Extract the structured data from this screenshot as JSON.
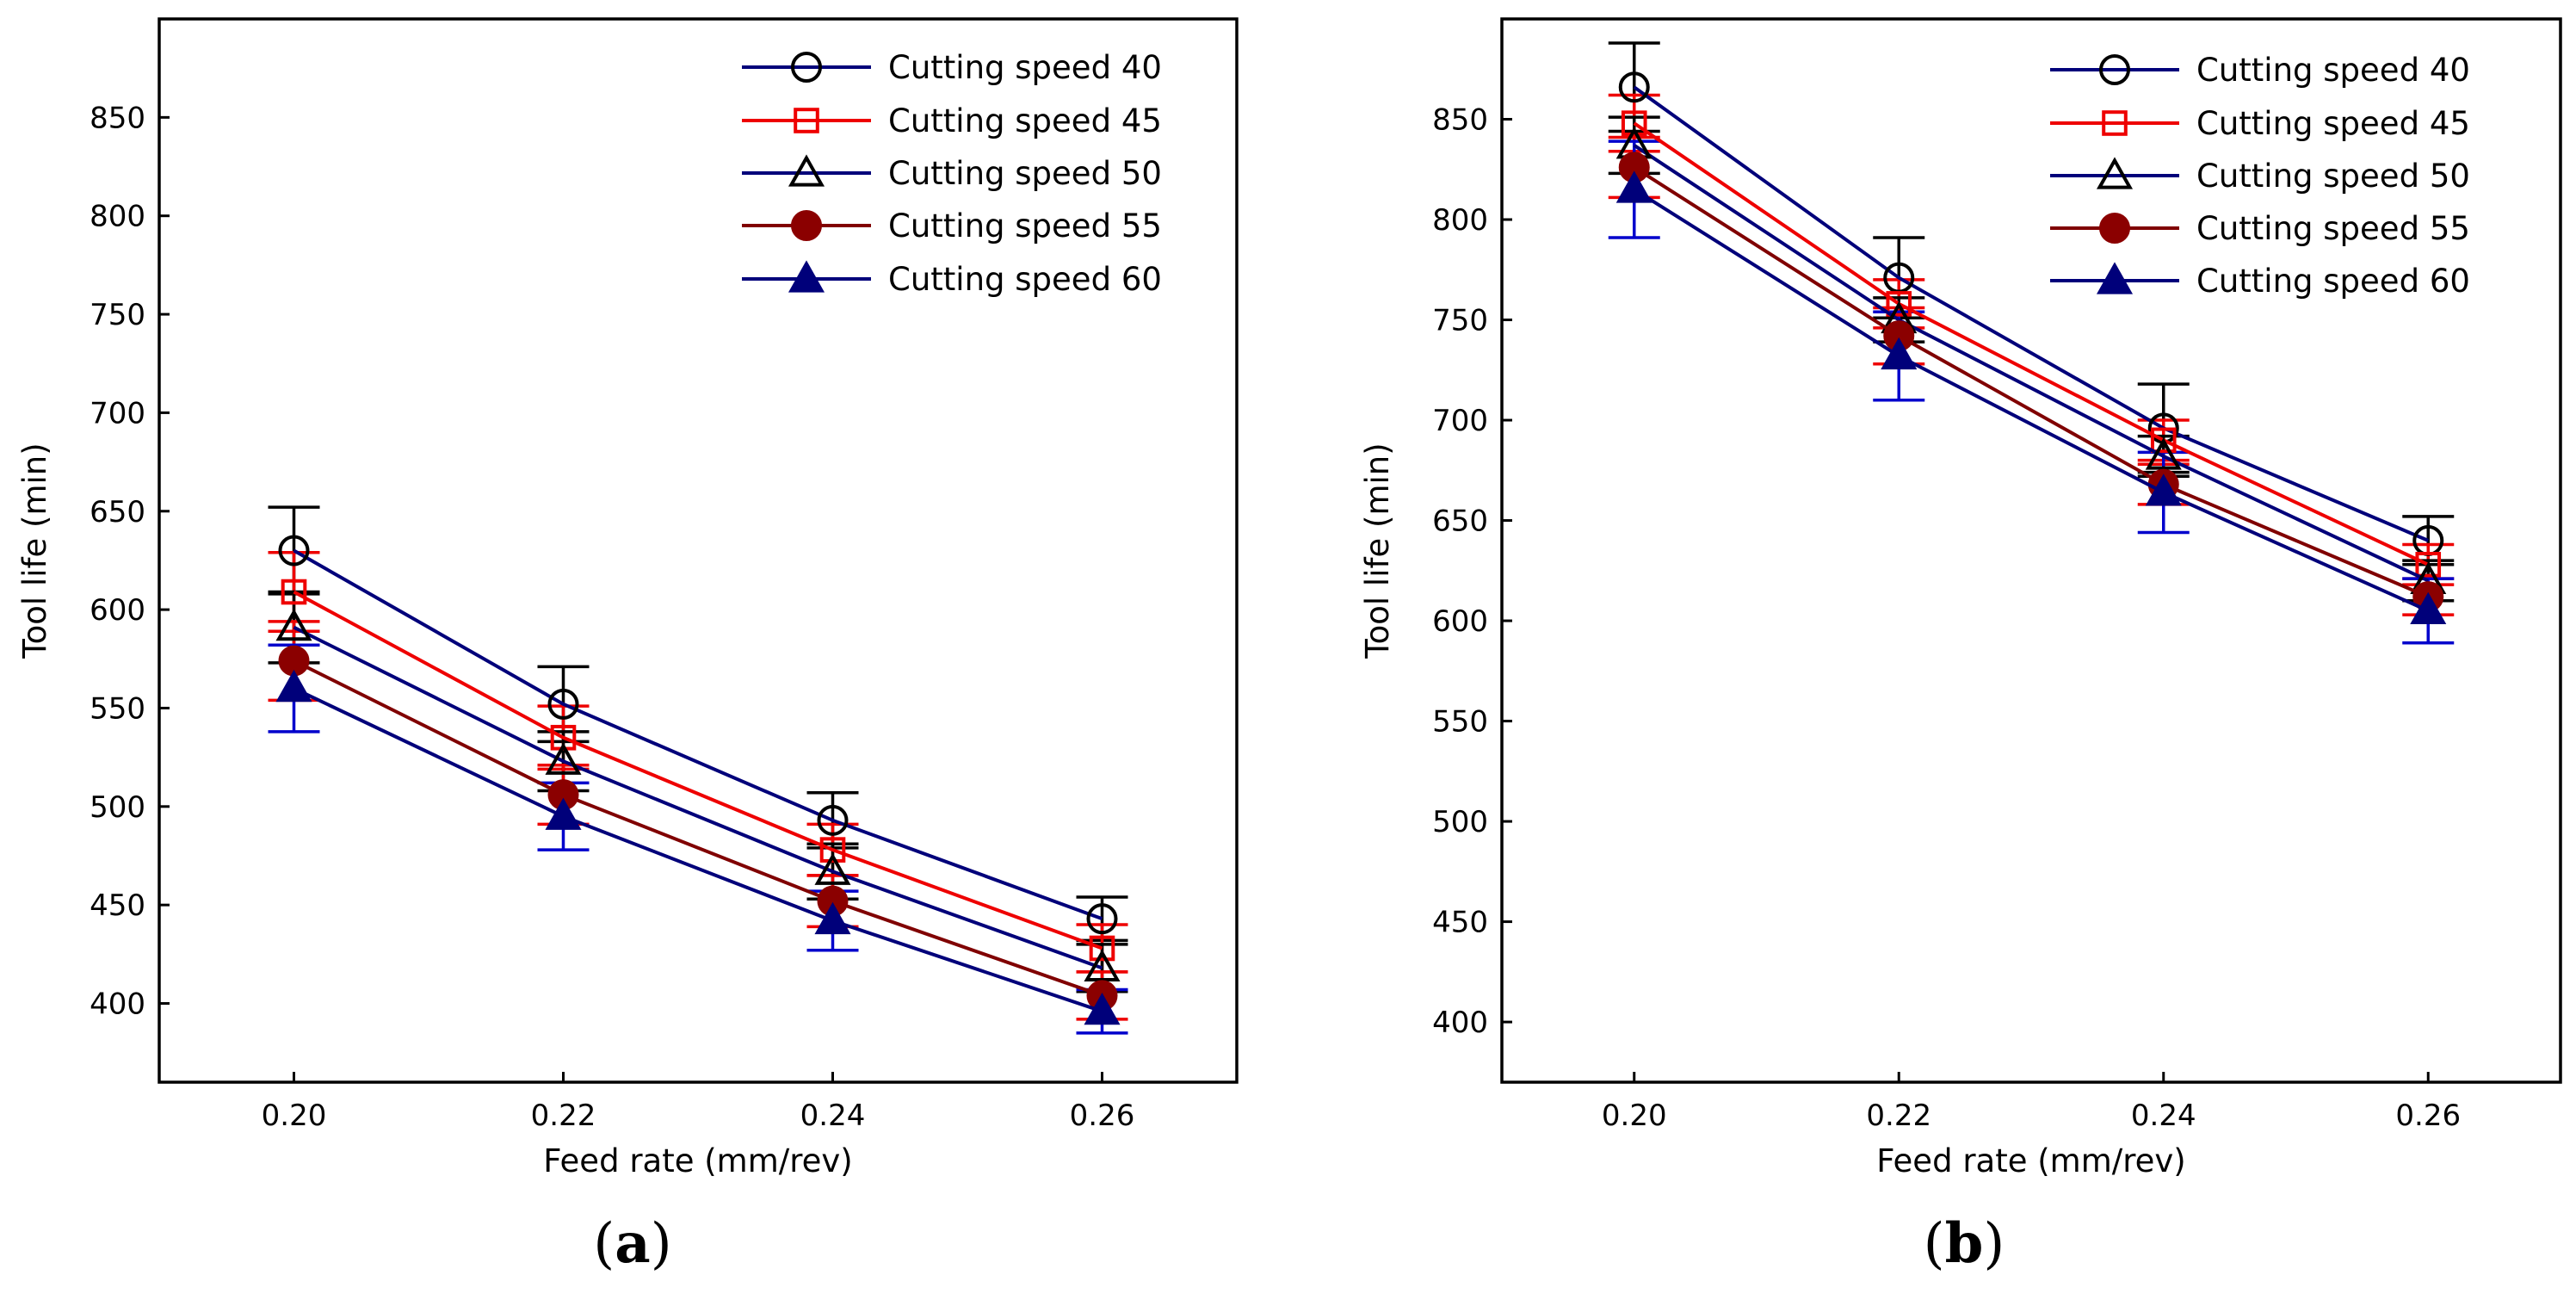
{
  "chart_data": [
    {
      "type": "line",
      "panel_label": "(a)",
      "panel_label_bold": "a",
      "xlabel": "Feed rate (mm/rev)",
      "ylabel": "Tool life (min)",
      "x": [
        0.2,
        0.22,
        0.24,
        0.26
      ],
      "x_tick_labels": [
        "0.20",
        "0.22",
        "0.24",
        "0.26"
      ],
      "xlim": [
        0.19,
        0.27
      ],
      "ylim": [
        360,
        900
      ],
      "y_ticks": [
        400,
        450,
        500,
        550,
        600,
        650,
        700,
        750,
        800,
        850
      ],
      "legend_position": "top-right",
      "series": [
        {
          "name": "Cutting speed 40",
          "values": [
            630,
            552,
            493,
            443
          ],
          "error": [
            22,
            19,
            14,
            11
          ],
          "line_color": "#00007a",
          "marker": "circle-open",
          "marker_color": "#000000",
          "err_color": "#000000"
        },
        {
          "name": "Cutting speed 45",
          "values": [
            609,
            535,
            478,
            428
          ],
          "error": [
            20,
            16,
            13,
            12
          ],
          "line_color": "#ee0000",
          "marker": "square-open",
          "marker_color": "#ee0000",
          "err_color": "#ee0000"
        },
        {
          "name": "Cutting speed 50",
          "values": [
            591,
            523,
            467,
            418
          ],
          "error": [
            18,
            15,
            14,
            12
          ],
          "line_color": "#00007a",
          "marker": "triangle-open",
          "marker_color": "#000000",
          "err_color": "#000000"
        },
        {
          "name": "Cutting speed 55",
          "values": [
            574,
            506,
            452,
            404
          ],
          "error": [
            20,
            15,
            13,
            12
          ],
          "line_color": "#800000",
          "marker": "circle-filled",
          "marker_color": "#8b0000",
          "err_color": "#ee0000"
        },
        {
          "name": "Cutting speed 60",
          "values": [
            560,
            495,
            442,
            396
          ],
          "error": [
            22,
            17,
            15,
            11
          ],
          "line_color": "#00007a",
          "marker": "triangle-filled",
          "marker_color": "#00007a",
          "err_color": "#0000cc"
        }
      ]
    },
    {
      "type": "line",
      "panel_label": "(b)",
      "panel_label_bold": "b",
      "xlabel": "Feed rate (mm/rev)",
      "ylabel": "Tool life (min)",
      "x": [
        0.2,
        0.22,
        0.24,
        0.26
      ],
      "x_tick_labels": [
        "0.20",
        "0.22",
        "0.24",
        "0.26"
      ],
      "xlim": [
        0.19,
        0.27
      ],
      "ylim": [
        370,
        900
      ],
      "y_ticks": [
        400,
        450,
        500,
        550,
        600,
        650,
        700,
        750,
        800,
        850
      ],
      "legend_position": "top-right",
      "series": [
        {
          "name": "Cutting speed 40",
          "values": [
            866,
            771,
            696,
            640
          ],
          "error": [
            22,
            20,
            22,
            12
          ],
          "line_color": "#00007a",
          "marker": "circle-open",
          "marker_color": "#000000",
          "err_color": "#000000"
        },
        {
          "name": "Cutting speed 45",
          "values": [
            848,
            758,
            690,
            628
          ],
          "error": [
            14,
            12,
            10,
            10
          ],
          "line_color": "#ee0000",
          "marker": "square-open",
          "marker_color": "#ee0000",
          "err_color": "#ee0000"
        },
        {
          "name": "Cutting speed 50",
          "values": [
            837,
            750,
            682,
            620
          ],
          "error": [
            14,
            11,
            10,
            10
          ],
          "line_color": "#00007a",
          "marker": "triangle-open",
          "marker_color": "#000000",
          "err_color": "#000000"
        },
        {
          "name": "Cutting speed 55",
          "values": [
            826,
            742,
            668,
            612
          ],
          "error": [
            15,
            14,
            10,
            9
          ],
          "line_color": "#800000",
          "marker": "circle-filled",
          "marker_color": "#8b0000",
          "err_color": "#ee0000"
        },
        {
          "name": "Cutting speed 60",
          "values": [
            815,
            732,
            664,
            605
          ],
          "error": [
            24,
            22,
            20,
            16
          ],
          "line_color": "#00007a",
          "marker": "triangle-filled",
          "marker_color": "#00007a",
          "err_color": "#0000cc"
        }
      ]
    }
  ]
}
